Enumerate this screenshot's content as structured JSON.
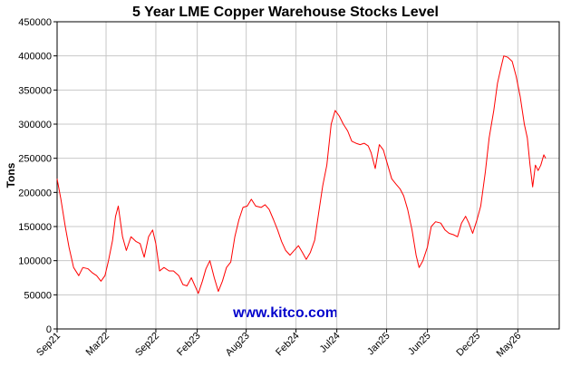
{
  "chart_data": {
    "type": "line",
    "title": "5 Year LME Copper Warehouse Stocks Level",
    "xlabel": "",
    "ylabel": "Tons",
    "watermark": "www.kitco.com",
    "ylim": [
      0,
      450000
    ],
    "y_ticks": [
      0,
      50000,
      100000,
      150000,
      200000,
      250000,
      300000,
      350000,
      400000,
      450000
    ],
    "y_tick_labels": [
      "0",
      "50000",
      "100000",
      "150000",
      "200000",
      "250000",
      "300000",
      "350000",
      "400000",
      "450000"
    ],
    "x_range": [
      "2021-09",
      "2026-10"
    ],
    "x_tick_labels": [
      {
        "label": "Sep21",
        "date": "2021-09"
      },
      {
        "label": "Mar22",
        "date": "2022-03"
      },
      {
        "label": "Sep22",
        "date": "2022-09"
      },
      {
        "label": "Feb23",
        "date": "2023-02"
      },
      {
        "label": "Aug23",
        "date": "2023-08"
      },
      {
        "label": "Feb24",
        "date": "2024-02"
      },
      {
        "label": "Jul24",
        "date": "2024-07"
      },
      {
        "label": "Jan25",
        "date": "2025-01"
      },
      {
        "label": "Jun25",
        "date": "2025-06"
      },
      {
        "label": "Dec25",
        "date": "2025-12"
      },
      {
        "label": "May26",
        "date": "2026-05"
      }
    ],
    "grid": true,
    "colors": {
      "line": "#ff0000",
      "grid": "#c8c8c8",
      "watermark": "#0000cc"
    },
    "series": [
      {
        "name": "",
        "points": [
          [
            "2021-09-01",
            220000
          ],
          [
            "2021-09-15",
            190000
          ],
          [
            "2021-10-01",
            150000
          ],
          [
            "2021-10-15",
            120000
          ],
          [
            "2021-11-01",
            90000
          ],
          [
            "2021-11-20",
            78000
          ],
          [
            "2021-12-05",
            90000
          ],
          [
            "2021-12-25",
            88000
          ],
          [
            "2022-01-10",
            82000
          ],
          [
            "2022-01-25",
            78000
          ],
          [
            "2022-02-10",
            70000
          ],
          [
            "2022-02-25",
            78000
          ],
          [
            "2022-03-10",
            100000
          ],
          [
            "2022-03-25",
            130000
          ],
          [
            "2022-04-05",
            165000
          ],
          [
            "2022-04-15",
            180000
          ],
          [
            "2022-05-01",
            135000
          ],
          [
            "2022-05-15",
            115000
          ],
          [
            "2022-06-01",
            135000
          ],
          [
            "2022-06-20",
            128000
          ],
          [
            "2022-07-05",
            125000
          ],
          [
            "2022-07-20",
            105000
          ],
          [
            "2022-08-05",
            135000
          ],
          [
            "2022-08-20",
            145000
          ],
          [
            "2022-09-01",
            125000
          ],
          [
            "2022-09-15",
            85000
          ],
          [
            "2022-10-01",
            90000
          ],
          [
            "2022-10-20",
            85000
          ],
          [
            "2022-11-05",
            85000
          ],
          [
            "2022-11-25",
            78000
          ],
          [
            "2022-12-10",
            65000
          ],
          [
            "2022-12-25",
            63000
          ],
          [
            "2023-01-10",
            75000
          ],
          [
            "2023-01-25",
            62000
          ],
          [
            "2023-02-05",
            52000
          ],
          [
            "2023-02-20",
            70000
          ],
          [
            "2023-03-05",
            88000
          ],
          [
            "2023-03-20",
            100000
          ],
          [
            "2023-04-05",
            75000
          ],
          [
            "2023-04-20",
            55000
          ],
          [
            "2023-05-05",
            70000
          ],
          [
            "2023-05-20",
            90000
          ],
          [
            "2023-06-05",
            98000
          ],
          [
            "2023-06-20",
            135000
          ],
          [
            "2023-07-05",
            160000
          ],
          [
            "2023-07-20",
            178000
          ],
          [
            "2023-08-05",
            180000
          ],
          [
            "2023-08-20",
            190000
          ],
          [
            "2023-09-05",
            180000
          ],
          [
            "2023-09-25",
            178000
          ],
          [
            "2023-10-10",
            182000
          ],
          [
            "2023-10-25",
            175000
          ],
          [
            "2023-11-10",
            160000
          ],
          [
            "2023-11-25",
            145000
          ],
          [
            "2023-12-10",
            128000
          ],
          [
            "2023-12-25",
            115000
          ],
          [
            "2024-01-10",
            108000
          ],
          [
            "2024-01-25",
            115000
          ],
          [
            "2024-02-10",
            122000
          ],
          [
            "2024-02-25",
            112000
          ],
          [
            "2024-03-10",
            102000
          ],
          [
            "2024-03-25",
            112000
          ],
          [
            "2024-04-10",
            130000
          ],
          [
            "2024-04-25",
            170000
          ],
          [
            "2024-05-10",
            210000
          ],
          [
            "2024-05-25",
            240000
          ],
          [
            "2024-06-10",
            300000
          ],
          [
            "2024-06-25",
            320000
          ],
          [
            "2024-07-10",
            312000
          ],
          [
            "2024-07-25",
            300000
          ],
          [
            "2024-08-10",
            290000
          ],
          [
            "2024-08-25",
            275000
          ],
          [
            "2024-09-10",
            272000
          ],
          [
            "2024-09-25",
            270000
          ],
          [
            "2024-10-10",
            272000
          ],
          [
            "2024-10-25",
            268000
          ],
          [
            "2024-11-05",
            258000
          ],
          [
            "2024-11-20",
            235000
          ],
          [
            "2024-12-05",
            270000
          ],
          [
            "2024-12-20",
            262000
          ],
          [
            "2025-01-05",
            240000
          ],
          [
            "2025-01-20",
            220000
          ],
          [
            "2025-02-05",
            212000
          ],
          [
            "2025-02-20",
            205000
          ],
          [
            "2025-03-05",
            195000
          ],
          [
            "2025-03-20",
            175000
          ],
          [
            "2025-04-05",
            145000
          ],
          [
            "2025-04-20",
            108000
          ],
          [
            "2025-05-01",
            90000
          ],
          [
            "2025-05-15",
            100000
          ],
          [
            "2025-06-01",
            120000
          ],
          [
            "2025-06-15",
            150000
          ],
          [
            "2025-07-01",
            157000
          ],
          [
            "2025-07-20",
            155000
          ],
          [
            "2025-08-05",
            145000
          ],
          [
            "2025-08-20",
            140000
          ],
          [
            "2025-09-05",
            138000
          ],
          [
            "2025-09-20",
            135000
          ],
          [
            "2025-10-05",
            155000
          ],
          [
            "2025-10-20",
            165000
          ],
          [
            "2025-11-01",
            155000
          ],
          [
            "2025-11-15",
            140000
          ],
          [
            "2025-12-01",
            160000
          ],
          [
            "2025-12-15",
            180000
          ],
          [
            "2026-01-01",
            230000
          ],
          [
            "2026-01-15",
            280000
          ],
          [
            "2026-02-01",
            320000
          ],
          [
            "2026-02-15",
            360000
          ],
          [
            "2026-03-01",
            385000
          ],
          [
            "2026-03-10",
            400000
          ],
          [
            "2026-03-25",
            398000
          ],
          [
            "2026-04-10",
            392000
          ],
          [
            "2026-04-25",
            370000
          ],
          [
            "2026-05-10",
            340000
          ],
          [
            "2026-05-25",
            300000
          ],
          [
            "2026-06-05",
            280000
          ],
          [
            "2026-06-15",
            240000
          ],
          [
            "2026-06-25",
            208000
          ],
          [
            "2026-07-05",
            240000
          ],
          [
            "2026-07-15",
            232000
          ],
          [
            "2026-07-25",
            240000
          ],
          [
            "2026-08-05",
            255000
          ],
          [
            "2026-08-12",
            250000
          ]
        ]
      }
    ]
  }
}
